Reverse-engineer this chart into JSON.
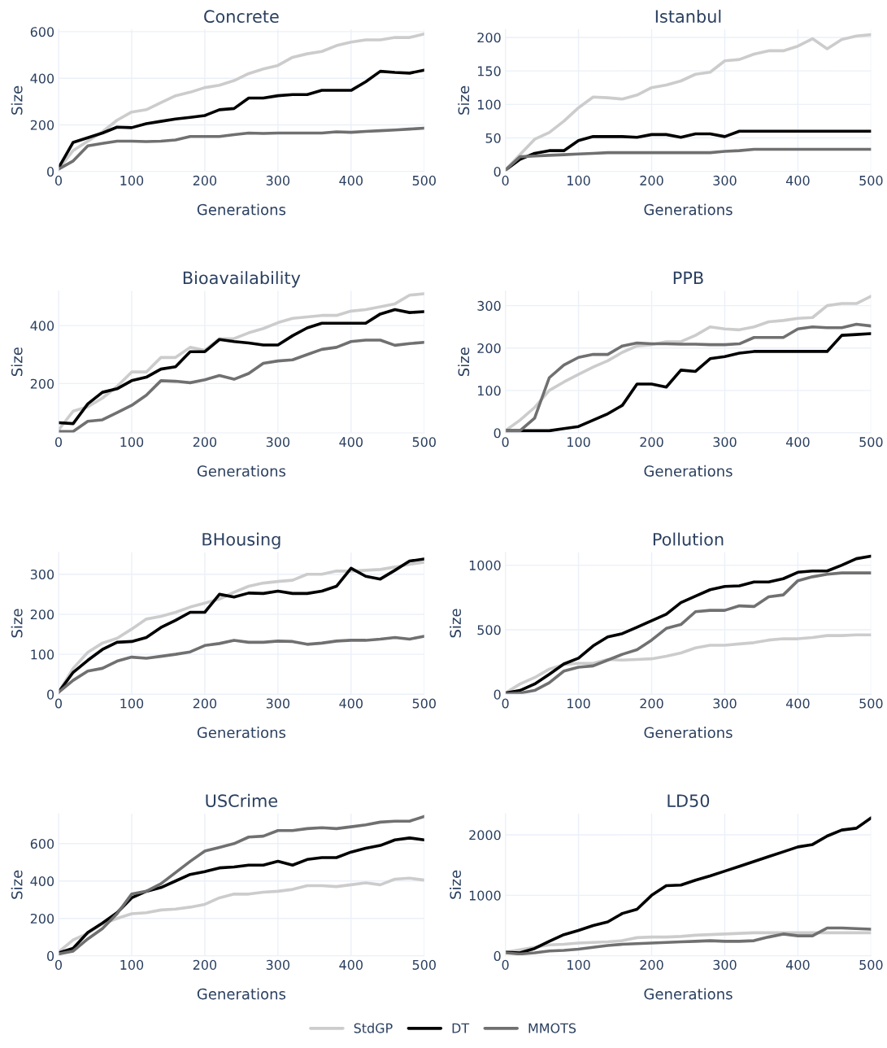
{
  "chart_data": [
    {
      "type": "line",
      "title": "Concrete",
      "xlabel": "Generations",
      "ylabel": "Size",
      "x": [
        0,
        20,
        40,
        60,
        80,
        100,
        120,
        140,
        160,
        180,
        200,
        220,
        240,
        260,
        280,
        300,
        320,
        340,
        360,
        380,
        400,
        420,
        440,
        460,
        480,
        500
      ],
      "xlim": [
        0,
        500
      ],
      "xticks": [
        0,
        100,
        200,
        300,
        400,
        500
      ],
      "ylim": [
        0,
        610
      ],
      "yticks": [
        0,
        200,
        400,
        600
      ],
      "grid": true,
      "marker": "none",
      "line_style": "solid",
      "legend": "bottom",
      "series": [
        {
          "name": "StdGP",
          "color": "#cccccc",
          "values": [
            10,
            90,
            130,
            170,
            220,
            255,
            265,
            295,
            325,
            340,
            360,
            370,
            390,
            420,
            440,
            455,
            490,
            505,
            515,
            540,
            555,
            565,
            565,
            575,
            575,
            590
          ]
        },
        {
          "name": "DT",
          "color": "#000000",
          "values": [
            15,
            125,
            145,
            165,
            190,
            188,
            205,
            215,
            225,
            232,
            240,
            265,
            270,
            315,
            315,
            325,
            330,
            330,
            348,
            348,
            348,
            385,
            430,
            425,
            422,
            435
          ]
        },
        {
          "name": "MMOTS",
          "color": "#707070",
          "values": [
            10,
            45,
            110,
            120,
            130,
            130,
            128,
            130,
            135,
            150,
            150,
            150,
            158,
            165,
            163,
            165,
            165,
            165,
            165,
            170,
            168,
            172,
            175,
            178,
            182,
            186
          ]
        }
      ]
    },
    {
      "type": "line",
      "title": "Istanbul",
      "xlabel": "Generations",
      "ylabel": "Size",
      "x": [
        0,
        20,
        40,
        60,
        80,
        100,
        120,
        140,
        160,
        180,
        200,
        220,
        240,
        260,
        280,
        300,
        320,
        340,
        360,
        380,
        400,
        420,
        440,
        460,
        480,
        500
      ],
      "xlim": [
        0,
        500
      ],
      "xticks": [
        0,
        100,
        200,
        300,
        400,
        500
      ],
      "ylim": [
        0,
        212
      ],
      "yticks": [
        0,
        50,
        100,
        150,
        200
      ],
      "grid": true,
      "marker": "none",
      "line_style": "solid",
      "series": [
        {
          "color": "#cccccc",
          "values": [
            2,
            25,
            48,
            58,
            75,
            95,
            111,
            110,
            108,
            114,
            125,
            129,
            135,
            145,
            148,
            165,
            167,
            175,
            180,
            180,
            187,
            198,
            183,
            197,
            202,
            204
          ]
        },
        {
          "color": "#000000",
          "values": [
            2,
            18,
            27,
            31,
            31,
            46,
            52,
            52,
            52,
            51,
            55,
            55,
            51,
            56,
            56,
            52,
            60,
            60,
            60,
            60,
            60,
            60,
            60,
            60,
            60,
            60
          ]
        },
        {
          "color": "#707070",
          "values": [
            2,
            22,
            23,
            24,
            25,
            26,
            27,
            28,
            28,
            28,
            28,
            28,
            28,
            28,
            28,
            30,
            31,
            33,
            33,
            33,
            33,
            33,
            33,
            33,
            33,
            33
          ]
        }
      ]
    },
    {
      "type": "line",
      "title": "Bioavailability",
      "xlabel": "Generations",
      "ylabel": "Size",
      "x": [
        0,
        20,
        40,
        60,
        80,
        100,
        120,
        140,
        160,
        180,
        200,
        220,
        240,
        260,
        280,
        300,
        320,
        340,
        360,
        380,
        400,
        420,
        440,
        460,
        480,
        500
      ],
      "xlim": [
        0,
        500
      ],
      "xticks": [
        0,
        100,
        200,
        300,
        400,
        500
      ],
      "ylim": [
        30,
        520
      ],
      "yticks": [
        200,
        400
      ],
      "grid": true,
      "marker": "none",
      "line_style": "solid",
      "series": [
        {
          "color": "#cccccc",
          "values": [
            40,
            105,
            120,
            150,
            190,
            240,
            240,
            290,
            290,
            325,
            315,
            355,
            355,
            375,
            390,
            410,
            425,
            430,
            435,
            435,
            450,
            455,
            465,
            475,
            505,
            510
          ]
        },
        {
          "color": "#000000",
          "values": [
            65,
            62,
            130,
            170,
            182,
            210,
            222,
            250,
            258,
            310,
            310,
            352,
            345,
            340,
            333,
            333,
            365,
            392,
            408,
            408,
            408,
            408,
            440,
            455,
            445,
            448
          ]
        },
        {
          "color": "#707070",
          "values": [
            35,
            35,
            70,
            75,
            100,
            125,
            160,
            210,
            208,
            203,
            213,
            228,
            215,
            235,
            270,
            278,
            282,
            300,
            318,
            325,
            345,
            350,
            350,
            332,
            338,
            342
          ]
        }
      ]
    },
    {
      "type": "line",
      "title": "PPB",
      "xlabel": "Generations",
      "ylabel": "Size",
      "x": [
        0,
        20,
        40,
        60,
        80,
        100,
        120,
        140,
        160,
        180,
        200,
        220,
        240,
        260,
        280,
        300,
        320,
        340,
        360,
        380,
        400,
        420,
        440,
        460,
        480,
        500
      ],
      "xlim": [
        0,
        500
      ],
      "xticks": [
        0,
        100,
        200,
        300,
        400,
        500
      ],
      "ylim": [
        0,
        335
      ],
      "yticks": [
        0,
        100,
        200,
        300
      ],
      "grid": true,
      "marker": "none",
      "line_style": "solid",
      "series": [
        {
          "color": "#cccccc",
          "values": [
            5,
            30,
            60,
            100,
            120,
            138,
            155,
            170,
            190,
            205,
            208,
            215,
            215,
            230,
            250,
            245,
            243,
            250,
            262,
            265,
            270,
            272,
            300,
            305,
            305,
            322
          ]
        },
        {
          "color": "#000000",
          "values": [
            5,
            5,
            5,
            5,
            10,
            15,
            30,
            45,
            65,
            115,
            115,
            108,
            148,
            145,
            175,
            180,
            188,
            192,
            192,
            192,
            192,
            192,
            192,
            230,
            232,
            234
          ]
        },
        {
          "color": "#707070",
          "values": [
            5,
            5,
            35,
            130,
            160,
            178,
            185,
            185,
            205,
            212,
            210,
            210,
            209,
            209,
            208,
            208,
            210,
            225,
            225,
            225,
            245,
            250,
            248,
            248,
            256,
            252
          ]
        }
      ]
    },
    {
      "type": "line",
      "title": "BHousing",
      "xlabel": "Generations",
      "ylabel": "Size",
      "x": [
        0,
        20,
        40,
        60,
        80,
        100,
        120,
        140,
        160,
        180,
        200,
        220,
        240,
        260,
        280,
        300,
        320,
        340,
        360,
        380,
        400,
        420,
        440,
        460,
        480,
        500
      ],
      "xlim": [
        0,
        500
      ],
      "xticks": [
        0,
        100,
        200,
        300,
        400,
        500
      ],
      "ylim": [
        0,
        355
      ],
      "yticks": [
        0,
        100,
        200,
        300
      ],
      "grid": true,
      "marker": "none",
      "line_style": "solid",
      "series": [
        {
          "color": "#cccccc",
          "values": [
            5,
            65,
            105,
            128,
            140,
            163,
            188,
            195,
            205,
            218,
            228,
            238,
            255,
            270,
            278,
            282,
            285,
            300,
            300,
            308,
            308,
            310,
            312,
            318,
            325,
            330
          ]
        },
        {
          "color": "#000000",
          "values": [
            5,
            55,
            85,
            112,
            130,
            132,
            142,
            167,
            185,
            205,
            205,
            250,
            243,
            253,
            252,
            258,
            252,
            252,
            258,
            270,
            315,
            295,
            288,
            310,
            333,
            338
          ]
        },
        {
          "color": "#707070",
          "values": [
            5,
            35,
            58,
            65,
            83,
            93,
            90,
            95,
            100,
            106,
            122,
            127,
            135,
            130,
            130,
            133,
            132,
            125,
            128,
            133,
            135,
            135,
            138,
            142,
            138,
            145
          ]
        }
      ]
    },
    {
      "type": "line",
      "title": "Pollution",
      "xlabel": "Generations",
      "ylabel": "Size",
      "x": [
        0,
        20,
        40,
        60,
        80,
        100,
        120,
        140,
        160,
        180,
        200,
        220,
        240,
        260,
        280,
        300,
        320,
        340,
        360,
        380,
        400,
        420,
        440,
        460,
        480,
        500
      ],
      "xlim": [
        0,
        500
      ],
      "xticks": [
        0,
        100,
        200,
        300,
        400,
        500
      ],
      "ylim": [
        0,
        1100
      ],
      "yticks": [
        0,
        500,
        1000
      ],
      "grid": true,
      "marker": "none",
      "line_style": "solid",
      "series": [
        {
          "color": "#cccccc",
          "values": [
            10,
            80,
            130,
            195,
            230,
            240,
            240,
            270,
            265,
            270,
            275,
            295,
            320,
            360,
            380,
            380,
            390,
            400,
            420,
            430,
            430,
            440,
            455,
            455,
            460,
            460
          ]
        },
        {
          "color": "#000000",
          "values": [
            10,
            30,
            80,
            155,
            235,
            280,
            375,
            445,
            470,
            520,
            570,
            620,
            710,
            760,
            810,
            835,
            840,
            870,
            870,
            895,
            945,
            955,
            955,
            1000,
            1050,
            1070
          ]
        },
        {
          "color": "#707070",
          "values": [
            5,
            10,
            30,
            90,
            180,
            210,
            220,
            265,
            310,
            345,
            420,
            510,
            540,
            640,
            650,
            650,
            685,
            680,
            755,
            770,
            880,
            910,
            930,
            940,
            940,
            940
          ]
        }
      ]
    },
    {
      "type": "line",
      "title": "USCrime",
      "xlabel": "Generations",
      "ylabel": "Size",
      "x": [
        0,
        20,
        40,
        60,
        80,
        100,
        120,
        140,
        160,
        180,
        200,
        220,
        240,
        260,
        280,
        300,
        320,
        340,
        360,
        380,
        400,
        420,
        440,
        460,
        480,
        500
      ],
      "xlim": [
        0,
        500
      ],
      "xticks": [
        0,
        100,
        200,
        300,
        400,
        500
      ],
      "ylim": [
        0,
        760
      ],
      "yticks": [
        0,
        200,
        400,
        600
      ],
      "grid": true,
      "marker": "none",
      "line_style": "solid",
      "series": [
        {
          "color": "#cccccc",
          "values": [
            20,
            85,
            120,
            170,
            200,
            225,
            230,
            245,
            250,
            260,
            275,
            310,
            330,
            330,
            340,
            345,
            355,
            375,
            375,
            370,
            380,
            390,
            380,
            410,
            415,
            405
          ]
        },
        {
          "color": "#000000",
          "values": [
            15,
            40,
            125,
            175,
            230,
            310,
            345,
            365,
            400,
            435,
            450,
            470,
            475,
            485,
            485,
            505,
            485,
            515,
            525,
            525,
            555,
            575,
            590,
            620,
            630,
            620
          ]
        },
        {
          "color": "#707070",
          "values": [
            10,
            25,
            90,
            145,
            225,
            330,
            345,
            385,
            445,
            505,
            560,
            580,
            600,
            635,
            640,
            670,
            670,
            680,
            685,
            680,
            690,
            700,
            715,
            720,
            720,
            745
          ]
        }
      ]
    },
    {
      "type": "line",
      "title": "LD50",
      "xlabel": "Generations",
      "ylabel": "Size",
      "x": [
        0,
        20,
        40,
        60,
        80,
        100,
        120,
        140,
        160,
        180,
        200,
        220,
        240,
        260,
        280,
        300,
        320,
        340,
        360,
        380,
        400,
        420,
        440,
        460,
        480,
        500
      ],
      "xlim": [
        0,
        500
      ],
      "xticks": [
        0,
        100,
        200,
        300,
        400,
        500
      ],
      "ylim": [
        0,
        2350
      ],
      "yticks": [
        0,
        1000,
        2000
      ],
      "grid": true,
      "marker": "none",
      "line_style": "solid",
      "series": [
        {
          "color": "#cccccc",
          "values": [
            60,
            100,
            140,
            180,
            190,
            210,
            220,
            230,
            250,
            300,
            310,
            310,
            320,
            340,
            350,
            360,
            370,
            380,
            380,
            380,
            380,
            380,
            380,
            380,
            380,
            380
          ]
        },
        {
          "color": "#000000",
          "values": [
            60,
            50,
            120,
            240,
            350,
            420,
            500,
            560,
            700,
            770,
            1000,
            1160,
            1170,
            1250,
            1320,
            1400,
            1480,
            1560,
            1640,
            1720,
            1800,
            1840,
            1980,
            2080,
            2110,
            2280
          ]
        },
        {
          "color": "#707070",
          "values": [
            50,
            30,
            50,
            80,
            90,
            110,
            140,
            170,
            190,
            200,
            210,
            220,
            230,
            240,
            250,
            240,
            240,
            250,
            310,
            360,
            330,
            330,
            460,
            460,
            450,
            440
          ]
        }
      ]
    }
  ]
}
